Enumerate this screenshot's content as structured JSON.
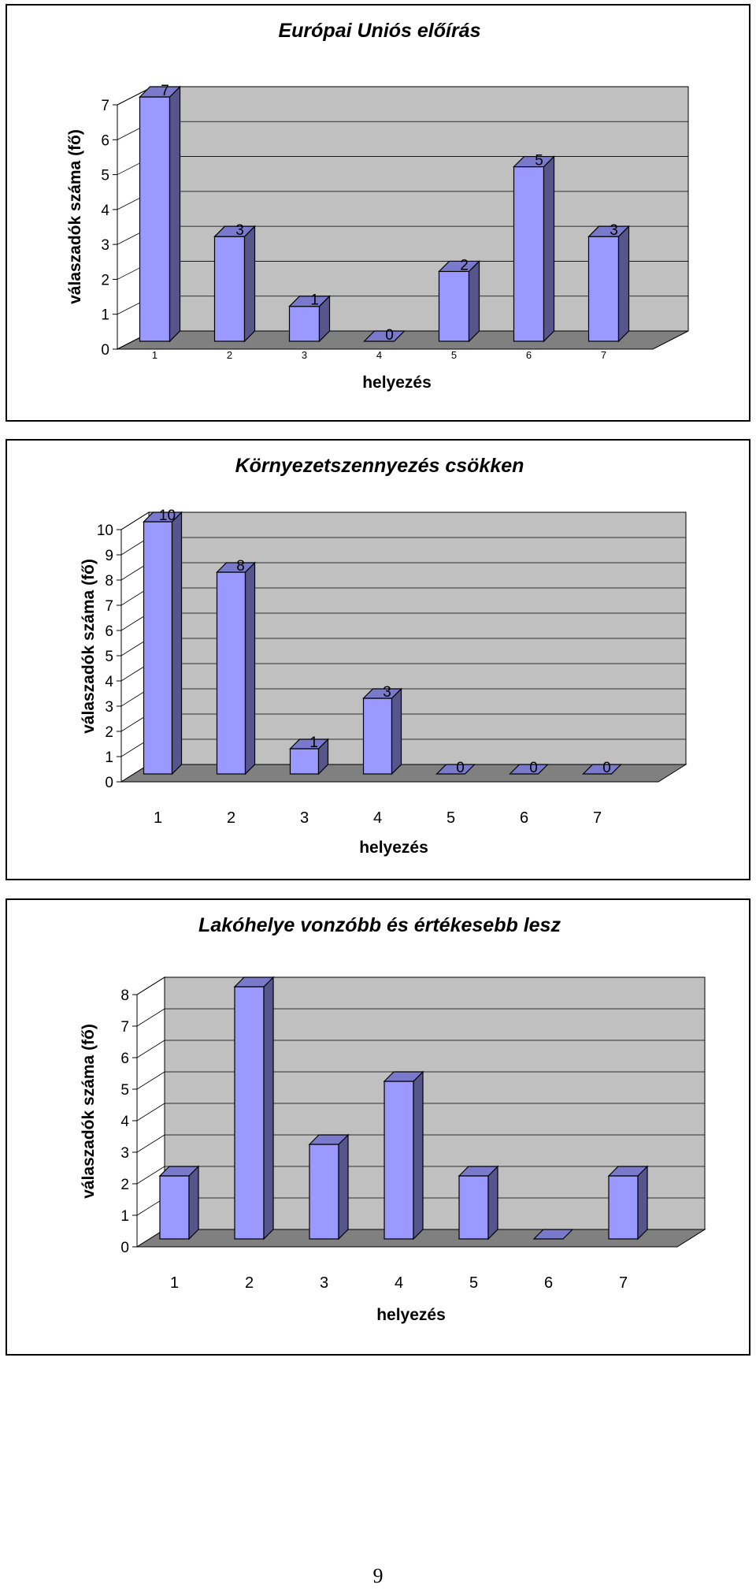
{
  "colors": {
    "bar_front": "#9999ff",
    "bar_side": "#56568c",
    "bar_top": "#7a7acc",
    "wall": "#c0c0c0",
    "floor": "#808080",
    "grid": "#000000"
  },
  "chart_data": [
    {
      "type": "bar",
      "title": "Európai Uniós előírás",
      "xlabel": "helyezés",
      "ylabel": "válaszadók száma (fő)",
      "categories": [
        "1",
        "2",
        "3",
        "4",
        "5",
        "6",
        "7"
      ],
      "values": [
        7,
        3,
        1,
        0,
        2,
        5,
        3
      ],
      "data_labels": [
        "7",
        "3",
        "1",
        "0",
        "2",
        "5",
        "3"
      ],
      "ylim": [
        0,
        7
      ],
      "yticks": [
        "0",
        "1",
        "2",
        "3",
        "4",
        "5",
        "6",
        "7"
      ],
      "grid": true,
      "legend": "none"
    },
    {
      "type": "bar",
      "title": "Környezetszennyezés csökken",
      "xlabel": "helyezés",
      "ylabel": "válaszadók száma (fő)",
      "categories": [
        "1",
        "2",
        "3",
        "4",
        "5",
        "6",
        "7"
      ],
      "values": [
        10,
        8,
        1,
        3,
        0,
        0,
        0
      ],
      "data_labels": [
        "10",
        "8",
        "1",
        "3",
        "0",
        "0",
        "0"
      ],
      "ylim": [
        0,
        10
      ],
      "yticks": [
        "0",
        "1",
        "2",
        "3",
        "4",
        "5",
        "6",
        "7",
        "8",
        "9",
        "10"
      ],
      "grid": true,
      "legend": "none"
    },
    {
      "type": "bar",
      "title": "Lakóhelye vonzóbb és értékesebb lesz",
      "xlabel": "helyezés",
      "ylabel": "válaszadók száma (fő)",
      "categories": [
        "1",
        "2",
        "3",
        "4",
        "5",
        "6",
        "7"
      ],
      "values": [
        2,
        8,
        3,
        5,
        2,
        0,
        2
      ],
      "data_labels": [],
      "ylim": [
        0,
        8
      ],
      "yticks": [
        "0",
        "1",
        "2",
        "3",
        "4",
        "5",
        "6",
        "7",
        "8"
      ],
      "grid": true,
      "legend": "none"
    }
  ],
  "page_number": "9"
}
